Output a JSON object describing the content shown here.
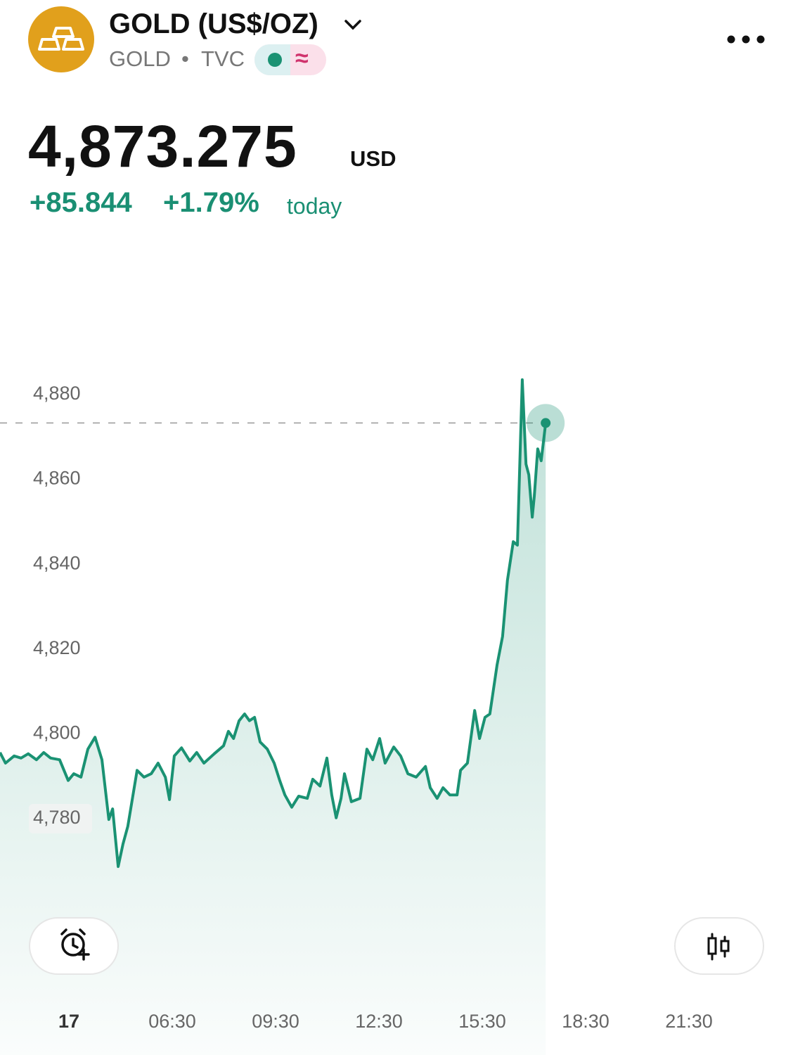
{
  "header": {
    "title": "GOLD (US$/OZ)",
    "symbol": "GOLD",
    "separator": "•",
    "exchange": "TVC",
    "badge_symbol": "≈",
    "price": "4,873.275",
    "currency": "USD",
    "change": "+85.844",
    "change_percent": "+1.79%",
    "period": "today"
  },
  "chart_data": {
    "type": "area",
    "color": "#1a9273",
    "x": [
      1.5,
      1.66,
      1.91,
      2.11,
      2.32,
      2.56,
      2.77,
      2.97,
      3.23,
      3.48,
      3.64,
      3.85,
      4.05,
      4.26,
      4.46,
      4.66,
      4.77,
      4.93,
      5.07,
      5.21,
      5.48,
      5.68,
      5.89,
      6.09,
      6.3,
      6.42,
      6.56,
      6.77,
      7.01,
      7.21,
      7.42,
      7.72,
      7.99,
      8.13,
      8.28,
      8.44,
      8.6,
      8.74,
      8.89,
      9.05,
      9.26,
      9.46,
      9.62,
      9.77,
      9.97,
      10.17,
      10.42,
      10.58,
      10.79,
      10.99,
      11.13,
      11.26,
      11.4,
      11.5,
      11.7,
      11.95,
      12.15,
      12.32,
      12.52,
      12.68,
      12.93,
      13.13,
      13.34,
      13.58,
      13.85,
      13.99,
      14.19,
      14.36,
      14.56,
      14.77,
      14.87,
      15.07,
      15.28,
      15.42,
      15.58,
      15.72,
      15.93,
      16.09,
      16.23,
      16.4,
      16.52,
      16.66,
      16.77,
      16.85,
      16.95,
      17.01,
      17.11,
      17.21,
      17.34
    ],
    "values": [
      4795.6,
      4793.1,
      4794.8,
      4794.3,
      4795.3,
      4793.9,
      4795.6,
      4794.3,
      4793.9,
      4789.0,
      4790.6,
      4789.8,
      4796.4,
      4799.2,
      4793.9,
      4779.8,
      4782.3,
      4768.7,
      4774.0,
      4778.2,
      4791.4,
      4789.8,
      4790.6,
      4793.1,
      4789.8,
      4784.5,
      4794.8,
      4796.7,
      4793.6,
      4795.6,
      4793.1,
      4795.3,
      4797.2,
      4800.6,
      4798.9,
      4803.1,
      4804.7,
      4803.1,
      4803.9,
      4798.1,
      4796.4,
      4793.1,
      4789.0,
      4785.6,
      4782.7,
      4785.3,
      4784.8,
      4789.3,
      4787.7,
      4794.3,
      4785.6,
      4780.2,
      4784.8,
      4790.6,
      4784.0,
      4784.8,
      4796.4,
      4793.9,
      4798.9,
      4793.1,
      4796.9,
      4794.8,
      4790.6,
      4789.8,
      4792.3,
      4787.3,
      4784.8,
      4787.3,
      4785.6,
      4785.6,
      4791.4,
      4793.1,
      4805.5,
      4798.9,
      4803.9,
      4804.7,
      4816.3,
      4823.0,
      4836.2,
      4845.3,
      4844.5,
      4883.5,
      4863.6,
      4861.1,
      4851.1,
      4856.0,
      4867.2,
      4864.4,
      4873.3
    ],
    "xlim": [
      1.5,
      24.52
    ],
    "xticks": [
      {
        "value": 3.5,
        "label": "17"
      },
      {
        "value": 6.5,
        "label": "06:30"
      },
      {
        "value": 9.5,
        "label": "09:30"
      },
      {
        "value": 12.5,
        "label": "12:30"
      },
      {
        "value": 15.5,
        "label": "15:30"
      },
      {
        "value": 18.5,
        "label": "18:30"
      },
      {
        "value": 21.5,
        "label": "21:30"
      }
    ],
    "ylim": [
      4760,
      4900
    ],
    "yticks": [
      {
        "value": 4780,
        "label": "4,780"
      },
      {
        "value": 4800,
        "label": "4,800"
      },
      {
        "value": 4820,
        "label": "4,820"
      },
      {
        "value": 4840,
        "label": "4,840"
      },
      {
        "value": 4860,
        "label": "4,860"
      },
      {
        "value": 4880,
        "label": "4,880"
      }
    ]
  }
}
